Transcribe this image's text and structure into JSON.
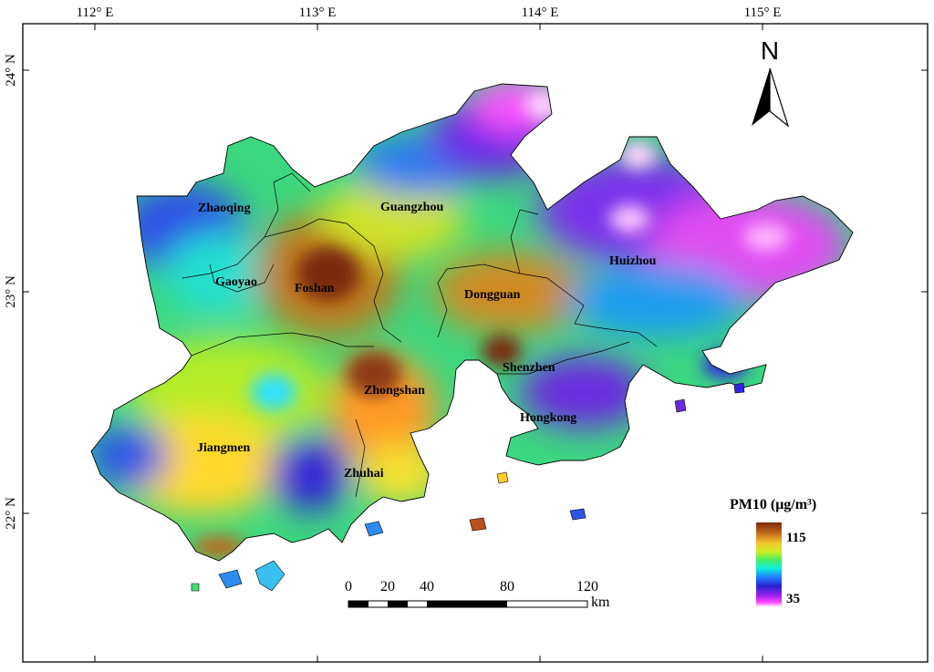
{
  "graticule": {
    "lon_labels": [
      "112° E",
      "113° E",
      "114° E",
      "115° E"
    ],
    "lat_labels": [
      "24° N",
      "23° N",
      "22° N"
    ]
  },
  "north_arrow": {
    "letter": "N"
  },
  "cities": [
    {
      "id": "zhaoqing",
      "name": "Zhaoqing"
    },
    {
      "id": "guangzhou",
      "name": "Guangzhou"
    },
    {
      "id": "huizhou",
      "name": "Huizhou"
    },
    {
      "id": "gaoyao",
      "name": "Gaoyao"
    },
    {
      "id": "foshan",
      "name": "Foshan"
    },
    {
      "id": "dongguan",
      "name": "Dongguan"
    },
    {
      "id": "shenzhen",
      "name": "Shenzhen"
    },
    {
      "id": "zhongshan",
      "name": "Zhongshan"
    },
    {
      "id": "hongkong",
      "name": "Hongkong"
    },
    {
      "id": "jiangmen",
      "name": "Jiangmen"
    },
    {
      "id": "zhuhai",
      "name": "Zhuhai"
    }
  ],
  "legend": {
    "title": "PM10 (μg/m³)",
    "max_label": "115",
    "min_label": "35",
    "colors": [
      "#7a2a0a",
      "#b8651f",
      "#e8b53a",
      "#ffe41a",
      "#b8f020",
      "#45f070",
      "#10f0e8",
      "#1a78ff",
      "#2222dd",
      "#7a22e8",
      "#ff33ff",
      "#ffd6ff"
    ]
  },
  "scale_bar": {
    "labels": [
      "0",
      "20",
      "40",
      "80",
      "120"
    ],
    "unit": "km"
  }
}
